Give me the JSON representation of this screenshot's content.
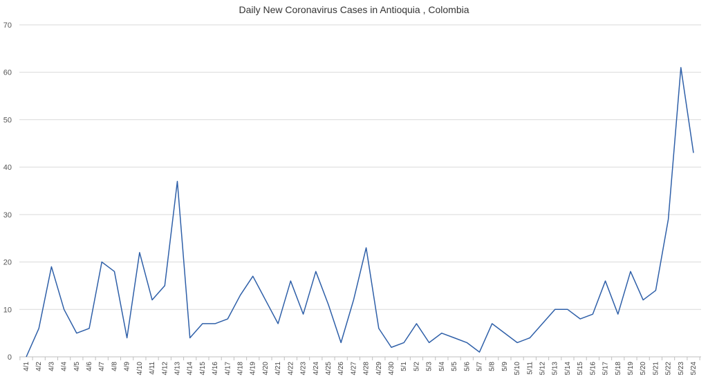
{
  "chart_data": {
    "type": "line",
    "title": "Daily New Coronavirus Cases in Antioquia , Colombia",
    "xlabel": "",
    "ylabel": "",
    "ylim": [
      0,
      70
    ],
    "yticks": [
      0,
      10,
      20,
      30,
      40,
      50,
      60,
      70
    ],
    "grid": true,
    "legend": "none",
    "line_color": "#2e5fa8",
    "categories": [
      "4/1",
      "4/2",
      "4/3",
      "4/4",
      "4/5",
      "4/6",
      "4/7",
      "4/8",
      "4/9",
      "4/10",
      "4/11",
      "4/12",
      "4/13",
      "4/14",
      "4/15",
      "4/16",
      "4/17",
      "4/18",
      "4/19",
      "4/20",
      "4/21",
      "4/22",
      "4/23",
      "4/24",
      "4/25",
      "4/26",
      "4/27",
      "4/28",
      "4/29",
      "4/30",
      "5/1",
      "5/2",
      "5/3",
      "5/4",
      "5/5",
      "5/6",
      "5/7",
      "5/8",
      "5/9",
      "5/10",
      "5/11",
      "5/12",
      "5/13",
      "5/14",
      "5/15",
      "5/16",
      "5/17",
      "5/18",
      "5/19",
      "5/20",
      "5/21",
      "5/22",
      "5/23",
      "5/24"
    ],
    "series": [
      {
        "values": [
          0,
          6,
          19,
          10,
          5,
          6,
          20,
          18,
          4,
          22,
          12,
          15,
          37,
          4,
          7,
          7,
          8,
          13,
          17,
          12,
          7,
          16,
          9,
          18,
          11,
          3,
          12,
          23,
          6,
          2,
          3,
          7,
          3,
          5,
          4,
          3,
          1,
          7,
          5,
          3,
          4,
          7,
          10,
          10,
          8,
          9,
          16,
          9,
          18,
          12,
          14,
          29,
          61,
          43
        ]
      }
    ]
  }
}
